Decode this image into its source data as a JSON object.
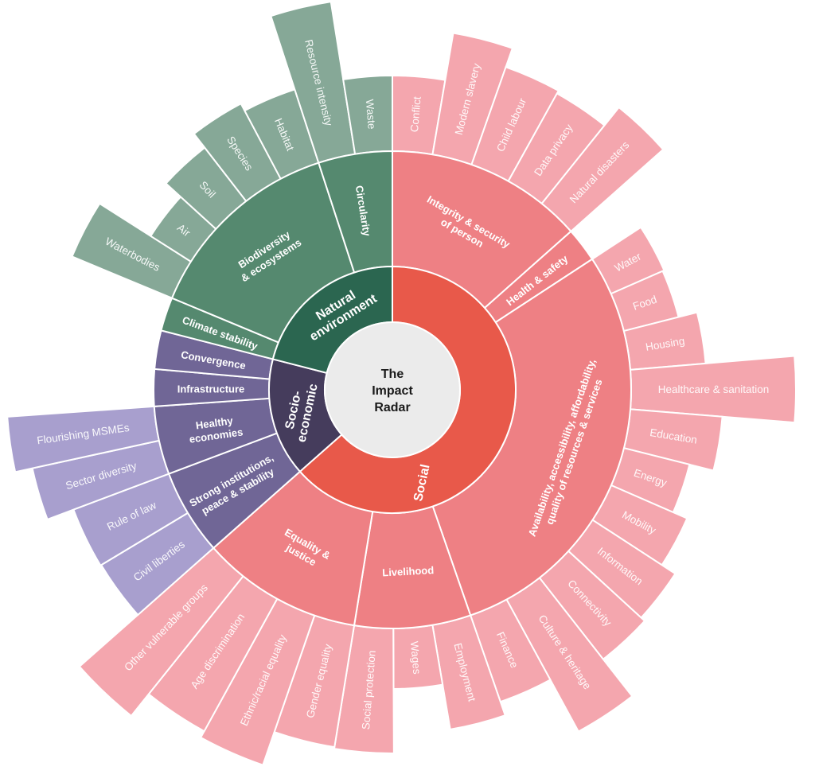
{
  "title_lines": [
    "The",
    "Impact",
    "Radar"
  ],
  "colors": {
    "center": "#EBEBEB",
    "social": {
      "l1": "#E8594A",
      "l2": "#EE8084",
      "l3": "#F4A6AE"
    },
    "socio_economic": {
      "l1": "#453C5C",
      "l2": "#706696",
      "l3": "#A89FCE"
    },
    "natural_environment": {
      "l1": "#2B6650",
      "l2": "#55896F",
      "l3": "#86A897"
    },
    "separator": "#FFFFFF"
  },
  "categories": [
    {
      "key": "social",
      "label_lines": [
        "Social"
      ],
      "children": [
        {
          "label_lines": [
            "Integrity & security",
            "of person"
          ],
          "children": [
            "Conflict",
            "Modern slavery",
            "Child labour",
            "Data privacy",
            "Natural disasters"
          ]
        },
        {
          "label_lines": [
            "Health & safety"
          ],
          "children": []
        },
        {
          "label_lines": [
            "Availability, accessibility, affordability,",
            "quality of resources & services"
          ],
          "children": [
            "Water",
            "Food",
            "Housing",
            "Healthcare & sanitation",
            "Education",
            "Energy",
            "Mobility",
            "Information",
            "Connectivity",
            "Culture & heritage",
            "Finance"
          ]
        },
        {
          "label_lines": [
            "Livelihood"
          ],
          "children": [
            "Employment",
            "Wages",
            "Social protection"
          ]
        },
        {
          "label_lines": [
            "Equality &",
            "justice"
          ],
          "children": [
            "Gender equality",
            "Ethnic/racial equality",
            "Age discrimination",
            "Other vulnerable groups"
          ]
        }
      ]
    },
    {
      "key": "socio_economic",
      "label_lines": [
        "Socio-",
        "economic"
      ],
      "children": [
        {
          "label_lines": [
            "Strong institutions,",
            "peace & stability"
          ],
          "children": [
            "Civil liberties",
            "Rule of law"
          ]
        },
        {
          "label_lines": [
            "Healthy",
            "economies"
          ],
          "children": [
            "Sector diversity",
            "Flourishing MSMEs"
          ]
        },
        {
          "label_lines": [
            "Infrastructure"
          ],
          "children": []
        },
        {
          "label_lines": [
            "Convergence"
          ],
          "children": []
        }
      ]
    },
    {
      "key": "natural_environment",
      "label_lines": [
        "Natural",
        "environment"
      ],
      "children": [
        {
          "label_lines": [
            "Climate stability"
          ],
          "children": []
        },
        {
          "label_lines": [
            "Biodiversity",
            "& ecosystems"
          ],
          "children": [
            "Waterbodies",
            "Air",
            "Soil",
            "Species",
            "Habitat"
          ]
        },
        {
          "label_lines": [
            "Circularity"
          ],
          "children": [
            "Resource intensity",
            "Waste"
          ]
        }
      ]
    }
  ]
}
